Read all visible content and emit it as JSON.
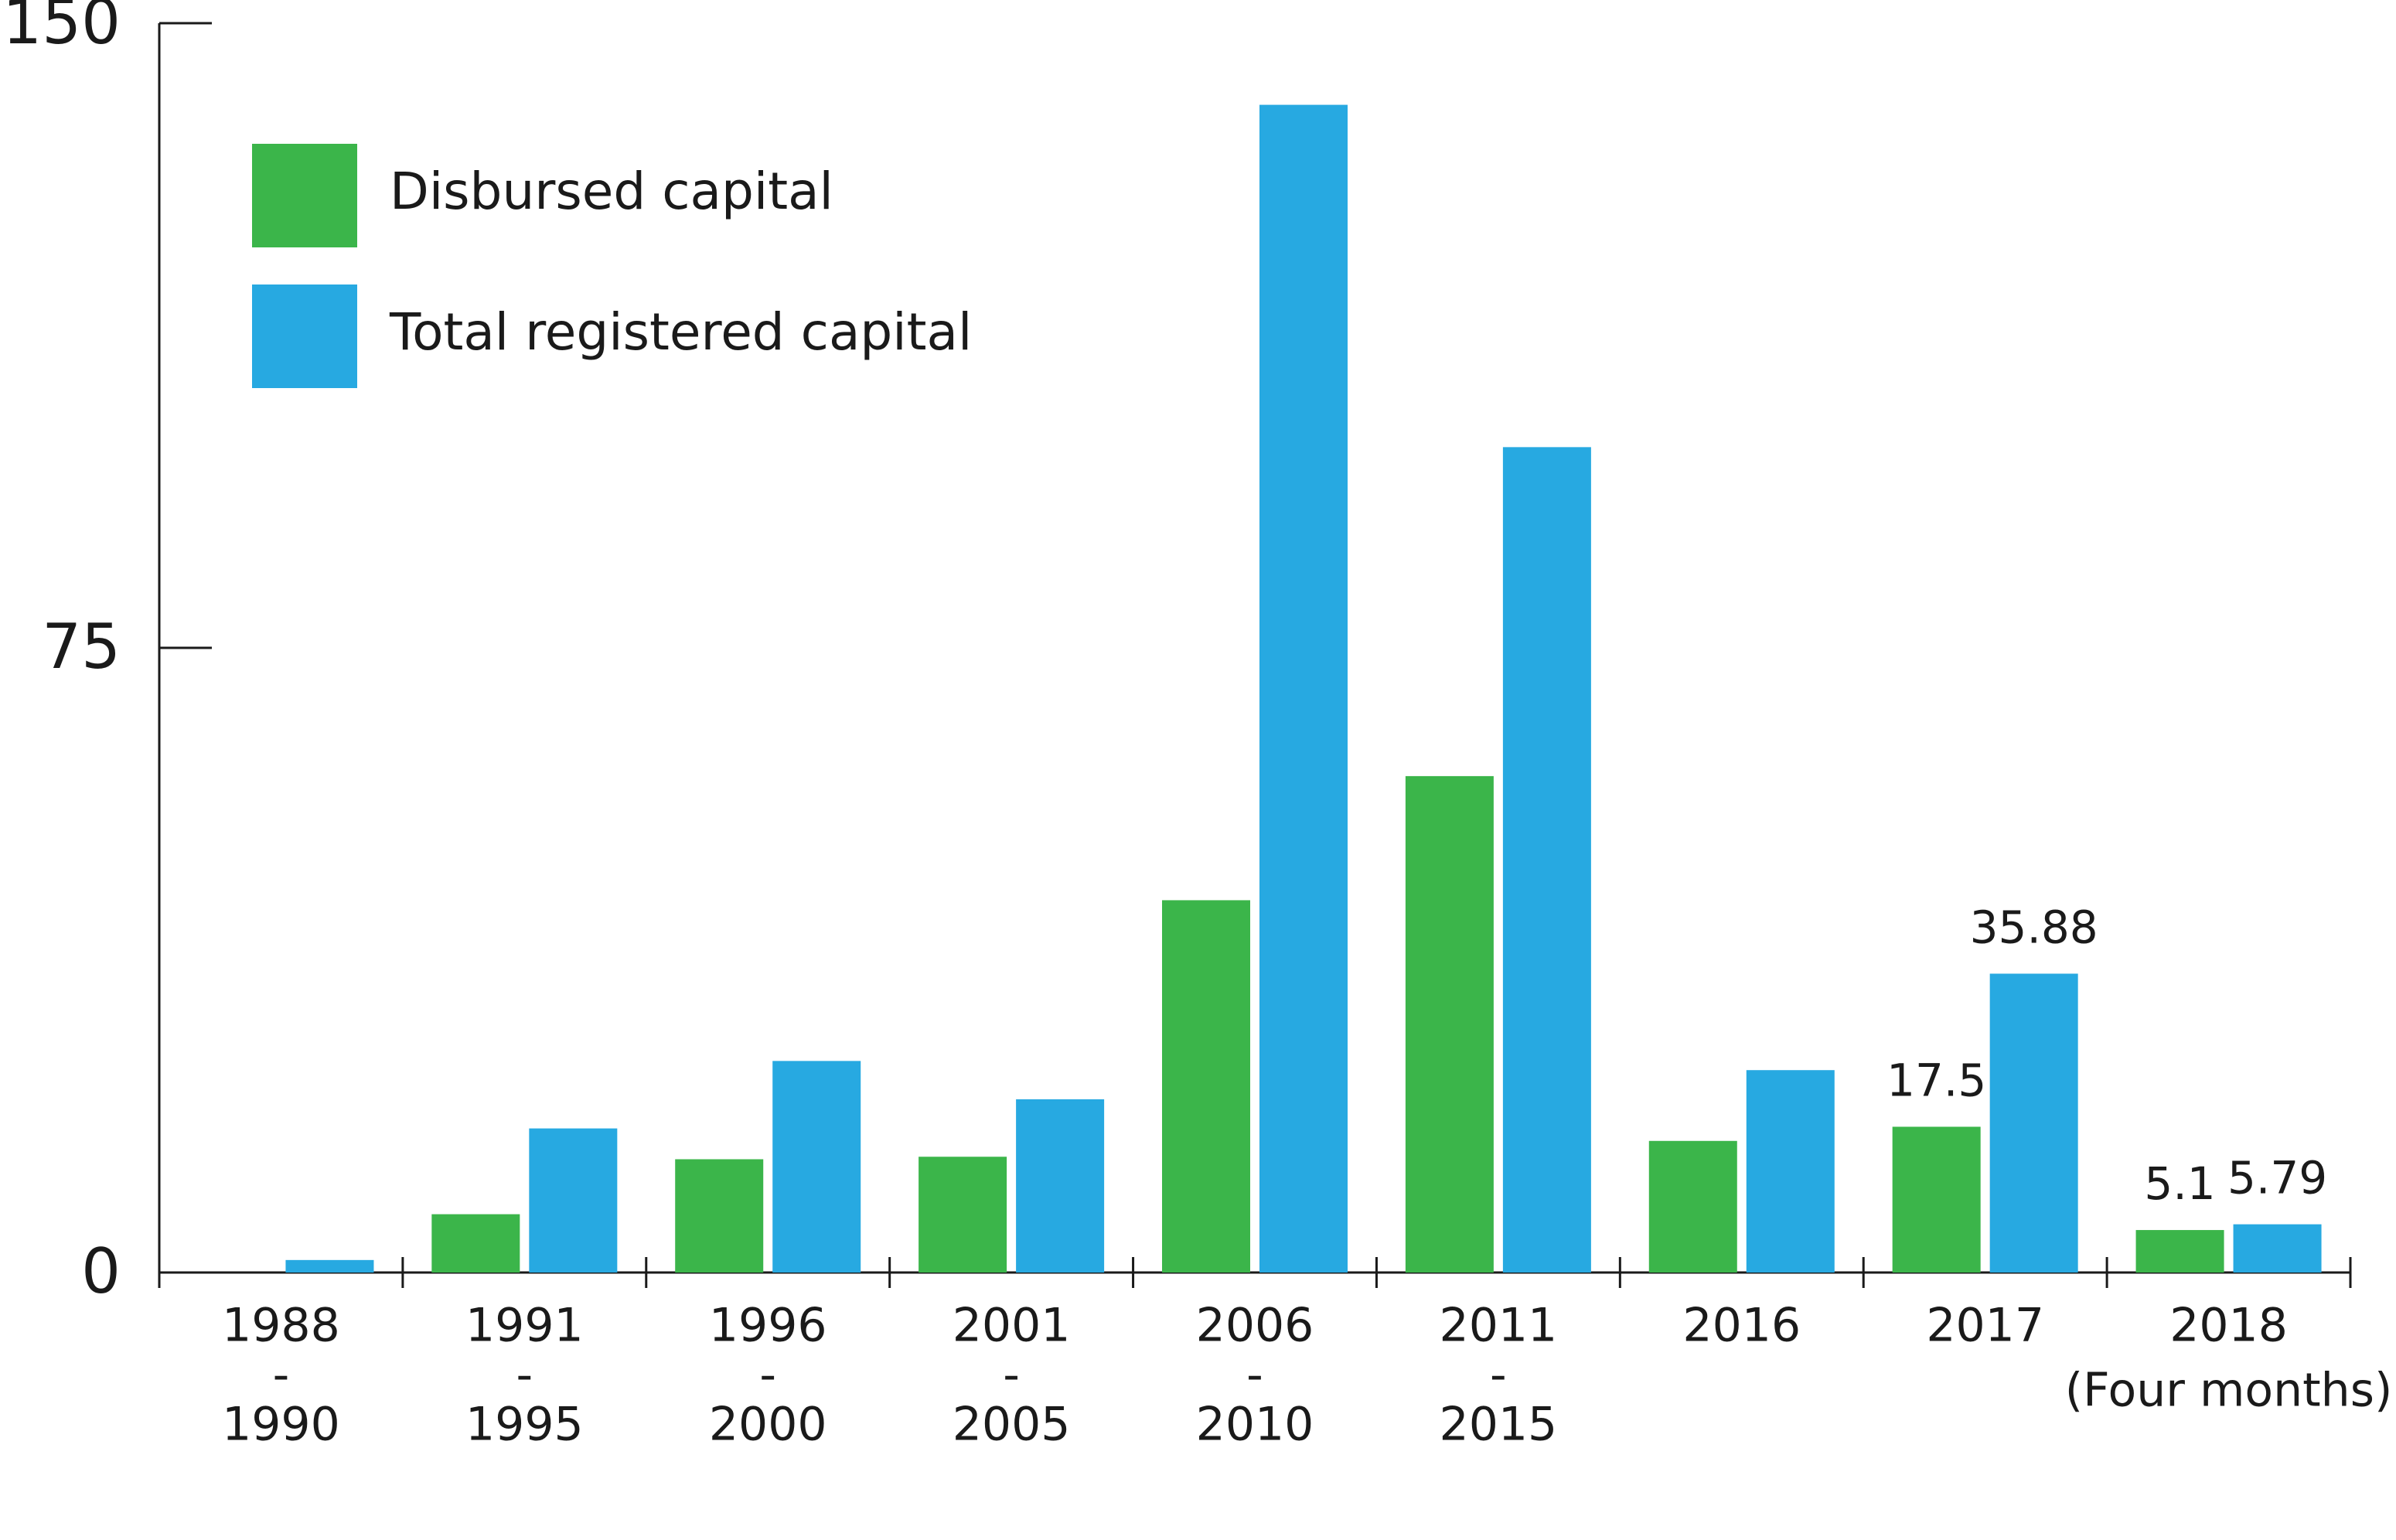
{
  "chart_data": {
    "type": "bar",
    "categories": [
      [
        "1988",
        "-",
        "1990"
      ],
      [
        "1991",
        "-",
        "1995"
      ],
      [
        "1996",
        "-",
        "2000"
      ],
      [
        "2001",
        "-",
        "2005"
      ],
      [
        "2006",
        "-",
        "2010"
      ],
      [
        "2011",
        "-",
        "2015"
      ],
      [
        "2016"
      ],
      [
        "2017"
      ],
      [
        "2018",
        "(Four months)"
      ]
    ],
    "series": [
      {
        "name": "Disbursed capital",
        "color": "#3bb54a",
        "values": [
          null,
          7,
          13.6,
          13.9,
          44.7,
          59.6,
          15.8,
          17.5,
          5.1
        ],
        "value_labels": [
          null,
          null,
          null,
          null,
          null,
          null,
          null,
          "17.5",
          "5.1"
        ]
      },
      {
        "name": "Total registered capital",
        "color": "#27a9e1",
        "values": [
          1.5,
          17.3,
          25.4,
          20.8,
          140.2,
          99.1,
          24.3,
          35.88,
          5.79
        ],
        "value_labels": [
          null,
          null,
          null,
          null,
          null,
          null,
          null,
          "35.88",
          "5.79"
        ]
      }
    ],
    "ylim": [
      0,
      150
    ],
    "yticks": [
      0,
      75,
      150
    ],
    "grid": false,
    "legend": "upper left"
  }
}
